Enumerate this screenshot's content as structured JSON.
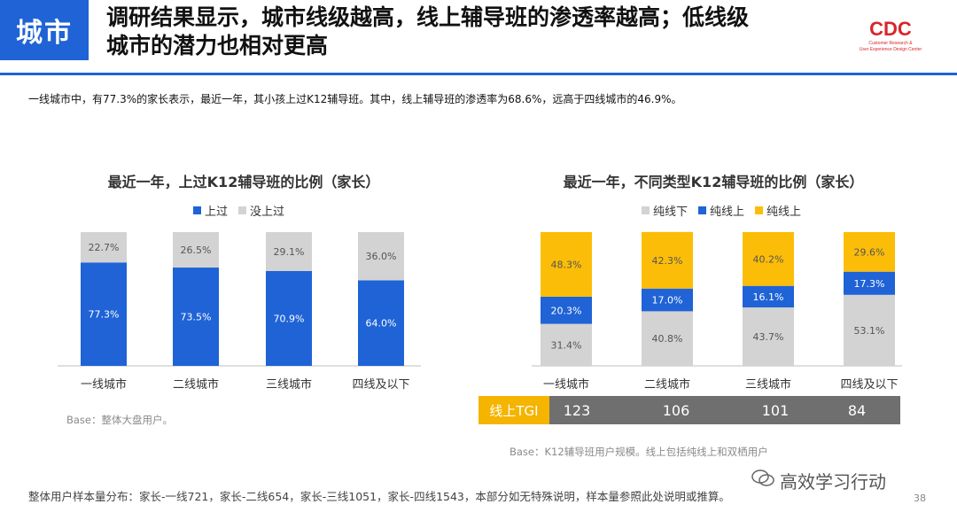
{
  "header": {
    "tag": "城市",
    "headline_line1": "调研结果显示，城市线级越高，线上辅导班的渗透率越高；低线级",
    "headline_line2": "城市的潜力也相对更高",
    "logo_text": "CDC",
    "logo_sub1": "Customer Research &",
    "logo_sub2": "User Experience Design Center"
  },
  "lead": "一线城市中，有77.3%的家长表示，最近一年，其小孩上过K12辅导班。其中，线上辅导班的渗透率为68.6%，远高于四线城市的46.9%。",
  "colors": {
    "blue": "#1f63d6",
    "gray": "#d3d3d3",
    "yellow": "#fbbd08",
    "tgi": "#6f6f6f"
  },
  "left": {
    "title": "最近一年，上过K12辅导班的比例（家长）",
    "base": "Base：整体大盘用户。"
  },
  "right": {
    "title": "最近一年，不同类型K12辅导班的比例（家长）",
    "base": "Base：K12辅导班用户规模。线上包括纯线上和双栖用户",
    "tgi_label": "线上TGI",
    "tgi_values": [
      "123",
      "106",
      "101",
      "84"
    ]
  },
  "chart_data": [
    {
      "type": "bar",
      "stacked": true,
      "title": "最近一年，上过K12辅导班的比例（家长）",
      "categories": [
        "一线城市",
        "二线城市",
        "三线城市",
        "四线及以下"
      ],
      "series": [
        {
          "name": "上过",
          "color": "#1f63d6",
          "values": [
            77.3,
            73.5,
            70.9,
            64.0
          ],
          "labels": [
            "77.3%",
            "73.5%",
            "70.9%",
            "64.0%"
          ]
        },
        {
          "name": "没上过",
          "color": "#d3d3d3",
          "values": [
            22.7,
            26.5,
            29.1,
            36.0
          ],
          "labels": [
            "22.7%",
            "26.5%",
            "29.1%",
            "36.0%"
          ]
        }
      ],
      "ylim": [
        0,
        100
      ],
      "legend": "top"
    },
    {
      "type": "bar",
      "stacked": true,
      "title": "最近一年，不同类型K12辅导班的比例（家长）",
      "categories": [
        "一线城市",
        "二线城市",
        "三线城市",
        "四线及以下"
      ],
      "series": [
        {
          "name": "纯线下",
          "color": "#d3d3d3",
          "values": [
            31.4,
            40.8,
            43.7,
            53.1
          ],
          "labels": [
            "31.4%",
            "40.8%",
            "43.7%",
            "53.1%"
          ]
        },
        {
          "name": "纯线上",
          "color": "#1f63d6",
          "values": [
            20.3,
            17.0,
            16.1,
            17.3
          ],
          "labels": [
            "20.3%",
            "17.0%",
            "16.1%",
            "17.3%"
          ]
        },
        {
          "name": "纯线上",
          "color": "#fbbd08",
          "values": [
            48.3,
            42.3,
            40.2,
            29.6
          ],
          "labels": [
            "48.3%",
            "42.3%",
            "40.2%",
            "29.6%"
          ]
        }
      ],
      "legend_labels": [
        "纯线下",
        "纯线上",
        "纯线上"
      ],
      "ylim": [
        0,
        100
      ],
      "legend": "top"
    }
  ],
  "footer": "整体用户样本量分布：家长-一线721，家长-二线654，家长-三线1051，家长-四线1543，本部分如无特殊说明，样本量参照此处说明或推算。",
  "watermark": "高效学习行动",
  "page_number": "38"
}
